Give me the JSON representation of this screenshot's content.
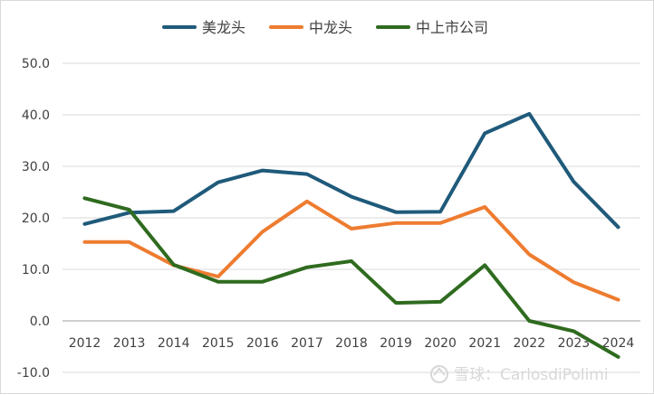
{
  "chart_data": {
    "type": "line",
    "categories": [
      "2012",
      "2013",
      "2014",
      "2015",
      "2016",
      "2017",
      "2018",
      "2019",
      "2020",
      "2021",
      "2022",
      "2023",
      "2024"
    ],
    "series": [
      {
        "name": "美龙头",
        "color": "#1f5a7a",
        "values": [
          18.8,
          21.0,
          21.3,
          26.9,
          29.2,
          28.5,
          24.1,
          21.1,
          21.2,
          36.4,
          40.2,
          27.0,
          18.2
        ]
      },
      {
        "name": "中龙头",
        "color": "#ee7c30",
        "values": [
          15.3,
          15.3,
          10.8,
          8.6,
          17.3,
          23.2,
          17.9,
          19.0,
          19.0,
          22.1,
          12.9,
          7.5,
          4.1
        ]
      },
      {
        "name": "中上市公司",
        "color": "#2f6b1f",
        "values": [
          23.8,
          21.6,
          10.9,
          7.6,
          7.6,
          10.4,
          11.6,
          3.5,
          3.7,
          10.8,
          0.0,
          -2.0,
          -7.0
        ]
      }
    ],
    "y_ticks": [
      "50.0",
      "40.0",
      "30.0",
      "20.0",
      "10.0",
      "0.0",
      "-10.0"
    ],
    "ylim": [
      -10,
      50
    ],
    "grid": true,
    "legend": "top-center",
    "title": "",
    "xlabel": "",
    "ylabel": ""
  },
  "watermark": {
    "icon": "snowball-icon",
    "text": "雪球：CarlosdiPolimi"
  }
}
